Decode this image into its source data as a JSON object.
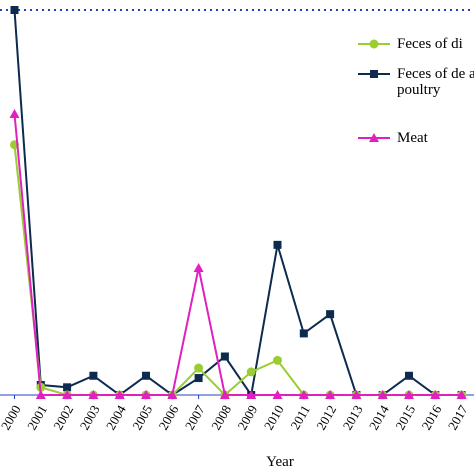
{
  "chart_data": {
    "type": "line",
    "x_label": "Year",
    "categories": [
      "2000",
      "2001",
      "2002",
      "2003",
      "2004",
      "2005",
      "2006",
      "2007",
      "2008",
      "2009",
      "2010",
      "2011",
      "2012",
      "2013",
      "2014",
      "2015",
      "2016",
      "2017"
    ],
    "ylim": [
      0,
      100
    ],
    "series": [
      {
        "name": "Feces of di",
        "color": "#9acd32",
        "marker": "circle",
        "values": [
          65,
          2,
          0,
          0,
          0,
          0,
          0,
          7,
          0,
          6,
          9,
          0,
          0,
          0,
          0,
          0,
          0,
          0
        ]
      },
      {
        "name": "Feces of de and poultry",
        "color": "#0d2b4e",
        "marker": "square",
        "values": [
          100,
          2.6,
          2,
          5,
          0,
          5,
          0,
          4.4,
          10,
          0,
          39,
          16,
          21,
          0,
          0,
          5,
          0,
          0
        ]
      },
      {
        "name": "Meat",
        "color": "#e020c0",
        "marker": "triangle",
        "values": [
          73,
          0,
          0,
          0,
          0,
          0,
          0,
          33,
          0,
          0,
          0,
          0,
          0,
          0,
          0,
          0,
          0,
          0
        ]
      }
    ]
  }
}
